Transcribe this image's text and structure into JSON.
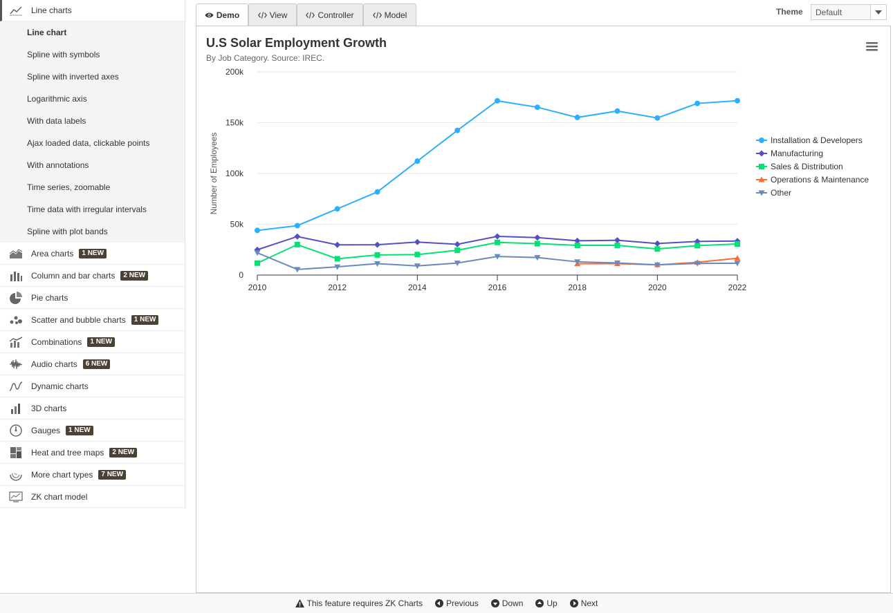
{
  "sidebar": {
    "active_category": {
      "label": "Line charts",
      "icon": "line-chart-icon"
    },
    "sub_items": [
      {
        "label": "Line chart",
        "selected": true
      },
      {
        "label": "Spline with symbols"
      },
      {
        "label": "Spline with inverted axes"
      },
      {
        "label": "Logarithmic axis"
      },
      {
        "label": "With data labels"
      },
      {
        "label": "Ajax loaded data, clickable points"
      },
      {
        "label": "With annotations"
      },
      {
        "label": "Time series, zoomable"
      },
      {
        "label": "Time data with irregular intervals"
      },
      {
        "label": "Spline with plot bands"
      }
    ],
    "categories": [
      {
        "label": "Area charts",
        "badge": "1 NEW",
        "icon": "area-chart-icon"
      },
      {
        "label": "Column and bar charts",
        "badge": "2 NEW",
        "icon": "column-chart-icon"
      },
      {
        "label": "Pie charts",
        "badge": "",
        "icon": "pie-chart-icon"
      },
      {
        "label": "Scatter and bubble charts",
        "badge": "1 NEW",
        "icon": "scatter-chart-icon"
      },
      {
        "label": "Combinations",
        "badge": "1 NEW",
        "icon": "combination-chart-icon"
      },
      {
        "label": "Audio charts",
        "badge": "6 NEW",
        "icon": "audio-chart-icon"
      },
      {
        "label": "Dynamic charts",
        "badge": "",
        "icon": "dynamic-chart-icon"
      },
      {
        "label": "3D charts",
        "badge": "",
        "icon": "3d-chart-icon"
      },
      {
        "label": "Gauges",
        "badge": "1 NEW",
        "icon": "gauge-icon"
      },
      {
        "label": "Heat and tree maps",
        "badge": "2 NEW",
        "icon": "heatmap-icon"
      },
      {
        "label": "More chart types",
        "badge": "7 NEW",
        "icon": "more-charts-icon"
      },
      {
        "label": "ZK chart model",
        "badge": "",
        "icon": "chart-model-icon"
      }
    ]
  },
  "tabs": [
    {
      "label": "Demo",
      "icon": "eye-icon",
      "active": true
    },
    {
      "label": "View",
      "icon": "code-icon"
    },
    {
      "label": "Controller",
      "icon": "code-icon"
    },
    {
      "label": "Model",
      "icon": "code-icon"
    }
  ],
  "theme": {
    "label": "Theme",
    "value": "Default"
  },
  "footer": {
    "warning": "This feature requires ZK Charts",
    "previous": "Previous",
    "down": "Down",
    "up": "Up",
    "next": "Next"
  },
  "chart_data": {
    "type": "line",
    "title": "U.S Solar Employment Growth",
    "subtitle": "By Job Category. Source: IREC.",
    "xlabel": "",
    "ylabel": "Number of Employees",
    "x": [
      2010,
      2011,
      2012,
      2013,
      2014,
      2015,
      2016,
      2017,
      2018,
      2019,
      2020,
      2021,
      2022
    ],
    "xlim": [
      2010,
      2022
    ],
    "ylim": [
      0,
      200000
    ],
    "x_ticks": [
      "2010",
      "2012",
      "2014",
      "2016",
      "2018",
      "2020",
      "2022"
    ],
    "x_tick_values": [
      2010,
      2012,
      2014,
      2016,
      2018,
      2020,
      2022
    ],
    "y_ticks": [
      "0",
      "50k",
      "100k",
      "150k",
      "200k"
    ],
    "y_tick_values": [
      0,
      50000,
      100000,
      150000,
      200000
    ],
    "grid": true,
    "legend_position": "right",
    "series": [
      {
        "name": "Installation & Developers",
        "color": "#2caffe",
        "marker": "circle",
        "values": [
          43934,
          48656,
          65165,
          81827,
          112143,
          142383,
          171533,
          165174,
          155157,
          161454,
          154610,
          168960,
          171558
        ]
      },
      {
        "name": "Manufacturing",
        "color": "#544fc5",
        "marker": "diamond",
        "values": [
          24916,
          37941,
          29742,
          29851,
          32490,
          30282,
          38121,
          36885,
          33726,
          34243,
          31050,
          33099,
          33473
        ]
      },
      {
        "name": "Sales & Distribution",
        "color": "#00e272",
        "marker": "square",
        "values": [
          11744,
          30000,
          16005,
          19771,
          20185,
          24377,
          32147,
          30912,
          29243,
          29213,
          25663,
          28978,
          30618
        ]
      },
      {
        "name": "Operations & Maintenance",
        "color": "#fe6a35",
        "marker": "triangle",
        "values": [
          null,
          null,
          null,
          null,
          null,
          null,
          null,
          null,
          11164,
          11218,
          10077,
          12530,
          16585
        ]
      },
      {
        "name": "Other",
        "color": "#6b8abc",
        "marker": "triangle-down",
        "values": [
          21908,
          5548,
          8105,
          11248,
          8989,
          11816,
          18274,
          17300,
          13053,
          11906,
          10073,
          11471,
          11648
        ]
      }
    ]
  }
}
